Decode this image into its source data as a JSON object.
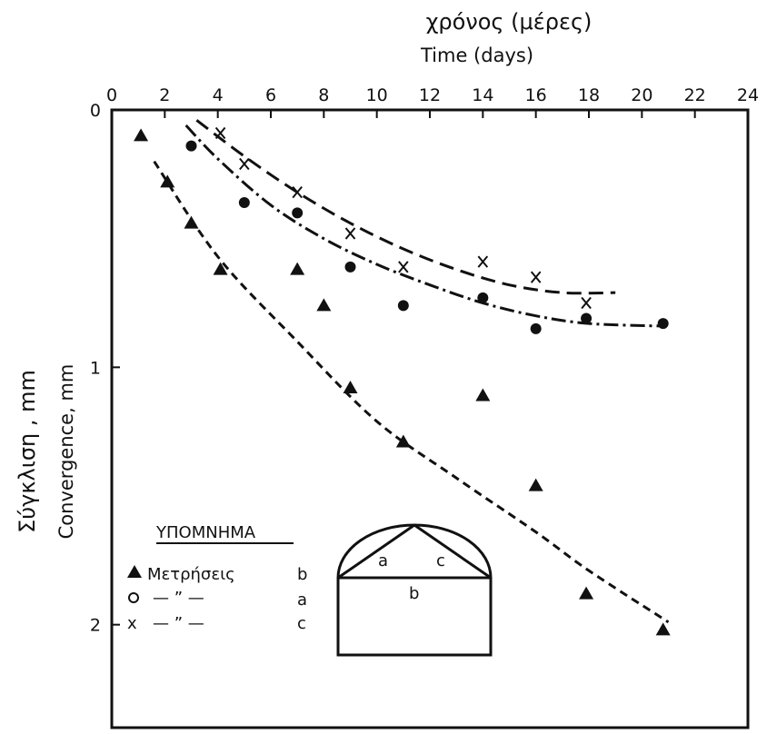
{
  "chart_data": {
    "type": "scatter",
    "title_greek": "χρόνος (μέρες)",
    "title_english": "Time (days)",
    "xlabel": "Time (days)",
    "ylabel_greek": "Σύγκλιση , mm",
    "ylabel_english": "Convergence, mm",
    "xlim": [
      0,
      24
    ],
    "ylim": [
      0,
      2.4
    ],
    "x_axis_position": "top",
    "y_inverted": true,
    "grid": false,
    "x_ticks": [
      "0",
      "2",
      "4",
      "6",
      "8",
      "10",
      "12",
      "14",
      "16",
      "18",
      "20",
      "22",
      "24"
    ],
    "y_ticks": [
      "0",
      "1",
      "2"
    ],
    "series": [
      {
        "key": "b",
        "marker": "triangle",
        "points": [
          {
            "x": 1.1,
            "y": 0.1
          },
          {
            "x": 2.1,
            "y": 0.28
          },
          {
            "x": 3.0,
            "y": 0.44
          },
          {
            "x": 4.1,
            "y": 0.62
          },
          {
            "x": 7.0,
            "y": 0.62
          },
          {
            "x": 8.0,
            "y": 0.76
          },
          {
            "x": 9.0,
            "y": 1.08
          },
          {
            "x": 11.0,
            "y": 1.29
          },
          {
            "x": 14.0,
            "y": 1.11
          },
          {
            "x": 16.0,
            "y": 1.46
          },
          {
            "x": 17.9,
            "y": 1.88
          },
          {
            "x": 20.8,
            "y": 2.02
          }
        ],
        "curve": [
          {
            "x": 1.6,
            "y": 0.2
          },
          {
            "x": 4,
            "y": 0.57
          },
          {
            "x": 7,
            "y": 0.9
          },
          {
            "x": 10,
            "y": 1.21
          },
          {
            "x": 13,
            "y": 1.43
          },
          {
            "x": 16,
            "y": 1.64
          },
          {
            "x": 18,
            "y": 1.79
          },
          {
            "x": 21,
            "y": 1.99
          }
        ]
      },
      {
        "key": "a",
        "marker": "circle",
        "points": [
          {
            "x": 3.0,
            "y": 0.14
          },
          {
            "x": 5.0,
            "y": 0.36
          },
          {
            "x": 7.0,
            "y": 0.4
          },
          {
            "x": 9.0,
            "y": 0.61
          },
          {
            "x": 11.0,
            "y": 0.76
          },
          {
            "x": 14.0,
            "y": 0.73
          },
          {
            "x": 16.0,
            "y": 0.85
          },
          {
            "x": 17.9,
            "y": 0.81
          },
          {
            "x": 20.8,
            "y": 0.83
          }
        ],
        "curve": [
          {
            "x": 2.8,
            "y": 0.06
          },
          {
            "x": 4,
            "y": 0.19
          },
          {
            "x": 6,
            "y": 0.37
          },
          {
            "x": 8,
            "y": 0.5
          },
          {
            "x": 10,
            "y": 0.6
          },
          {
            "x": 12,
            "y": 0.68
          },
          {
            "x": 14,
            "y": 0.75
          },
          {
            "x": 16,
            "y": 0.8
          },
          {
            "x": 18,
            "y": 0.83
          },
          {
            "x": 20.8,
            "y": 0.84
          }
        ]
      },
      {
        "key": "c",
        "marker": "x",
        "points": [
          {
            "x": 4.1,
            "y": 0.09
          },
          {
            "x": 5.0,
            "y": 0.21
          },
          {
            "x": 7.0,
            "y": 0.32
          },
          {
            "x": 9.0,
            "y": 0.48
          },
          {
            "x": 11.0,
            "y": 0.61
          },
          {
            "x": 14.0,
            "y": 0.59
          },
          {
            "x": 16.0,
            "y": 0.65
          },
          {
            "x": 17.9,
            "y": 0.75
          }
        ],
        "curve": [
          {
            "x": 3.2,
            "y": 0.04
          },
          {
            "x": 5,
            "y": 0.18
          },
          {
            "x": 7,
            "y": 0.32
          },
          {
            "x": 9,
            "y": 0.44
          },
          {
            "x": 11,
            "y": 0.54
          },
          {
            "x": 13,
            "y": 0.62
          },
          {
            "x": 15,
            "y": 0.68
          },
          {
            "x": 17,
            "y": 0.71
          },
          {
            "x": 19,
            "y": 0.71
          }
        ]
      }
    ],
    "legend": {
      "heading": "ΥΠΟΜΝΗΜΑ",
      "rows": [
        {
          "marker": "triangle",
          "label": "Μετρήσεις",
          "key": "b"
        },
        {
          "marker": "circle",
          "label": "— ” —",
          "key": "a"
        },
        {
          "marker": "x",
          "label": "— ” —",
          "key": "c"
        }
      ],
      "placement": "bottom-left"
    },
    "inset_diagram": {
      "labels": [
        "a",
        "c",
        "b"
      ],
      "placement": "bottom-center"
    }
  }
}
